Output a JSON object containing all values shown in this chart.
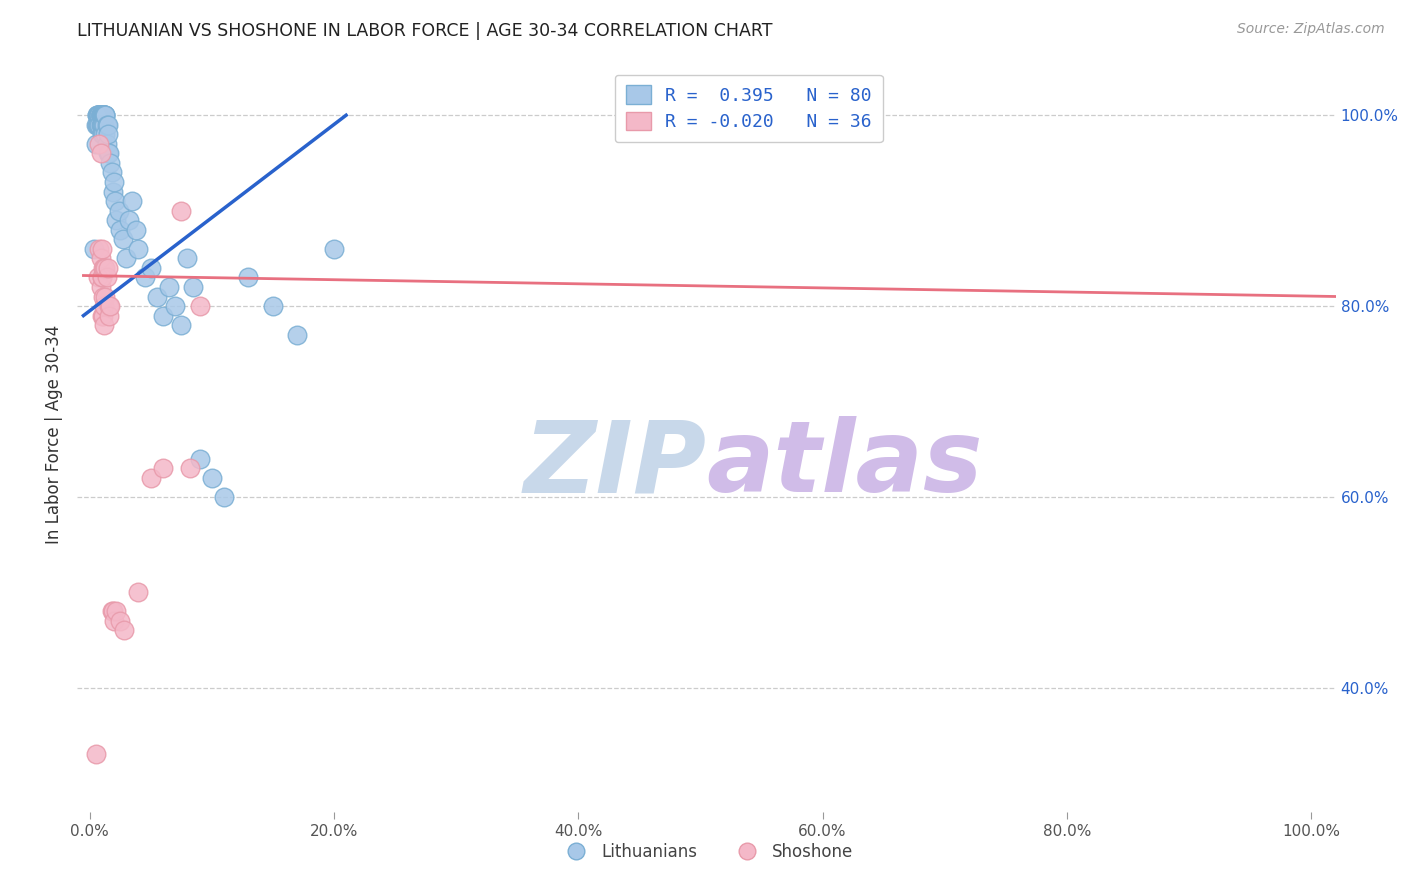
{
  "title": "LITHUANIAN VS SHOSHONE IN LABOR FORCE | AGE 30-34 CORRELATION CHART",
  "source": "Source: ZipAtlas.com",
  "ylabel": "In Labor Force | Age 30-34",
  "x_tick_labels": [
    "0.0%",
    "20.0%",
    "40.0%",
    "60.0%",
    "80.0%",
    "100.0%"
  ],
  "x_tick_vals": [
    0.0,
    0.2,
    0.4,
    0.6,
    0.8,
    1.0
  ],
  "y_tick_labels_right": [
    "100.0%",
    "80.0%",
    "60.0%",
    "40.0%"
  ],
  "y_tick_vals_right": [
    1.0,
    0.8,
    0.6,
    0.4
  ],
  "xlim": [
    -0.01,
    1.02
  ],
  "ylim": [
    0.27,
    1.06
  ],
  "legend_label_blue": "Lithuanians",
  "legend_label_pink": "Shoshone",
  "r_blue": 0.395,
  "n_blue": 80,
  "r_pink": -0.02,
  "n_pink": 36,
  "blue_color": "#a8c8e8",
  "pink_color": "#f4b8c8",
  "blue_edge_color": "#7bafd4",
  "pink_edge_color": "#e89aaa",
  "blue_line_color": "#2962cc",
  "pink_line_color": "#e87080",
  "title_color": "#222222",
  "source_color": "#999999",
  "axis_label_color": "#333333",
  "tick_color_right": "#2962cc",
  "tick_color_bottom": "#555555",
  "grid_color": "#cccccc",
  "watermark_zip_color": "#c8d8ea",
  "watermark_atlas_color": "#d0bce8",
  "blue_scatter_x": [
    0.004,
    0.005,
    0.005,
    0.006,
    0.006,
    0.006,
    0.007,
    0.007,
    0.007,
    0.007,
    0.008,
    0.008,
    0.008,
    0.008,
    0.009,
    0.009,
    0.009,
    0.009,
    0.009,
    0.009,
    0.01,
    0.01,
    0.01,
    0.01,
    0.01,
    0.01,
    0.01,
    0.01,
    0.01,
    0.011,
    0.011,
    0.011,
    0.011,
    0.011,
    0.011,
    0.012,
    0.012,
    0.012,
    0.012,
    0.012,
    0.013,
    0.013,
    0.013,
    0.013,
    0.014,
    0.014,
    0.015,
    0.015,
    0.015,
    0.016,
    0.017,
    0.018,
    0.019,
    0.02,
    0.021,
    0.022,
    0.024,
    0.025,
    0.027,
    0.03,
    0.032,
    0.035,
    0.038,
    0.04,
    0.045,
    0.05,
    0.055,
    0.06,
    0.065,
    0.07,
    0.075,
    0.08,
    0.085,
    0.09,
    0.1,
    0.11,
    0.13,
    0.15,
    0.17,
    0.2
  ],
  "blue_scatter_y": [
    0.86,
    0.99,
    0.97,
    1.0,
    1.0,
    0.99,
    1.0,
    1.0,
    1.0,
    0.99,
    1.0,
    1.0,
    1.0,
    0.99,
    1.0,
    1.0,
    1.0,
    1.0,
    1.0,
    0.99,
    1.0,
    1.0,
    1.0,
    1.0,
    1.0,
    1.0,
    0.99,
    0.99,
    0.98,
    1.0,
    1.0,
    1.0,
    1.0,
    0.99,
    0.98,
    1.0,
    1.0,
    1.0,
    1.0,
    0.99,
    1.0,
    1.0,
    1.0,
    0.98,
    0.99,
    0.97,
    0.99,
    0.98,
    0.96,
    0.96,
    0.95,
    0.94,
    0.92,
    0.93,
    0.91,
    0.89,
    0.9,
    0.88,
    0.87,
    0.85,
    0.89,
    0.91,
    0.88,
    0.86,
    0.83,
    0.84,
    0.81,
    0.79,
    0.82,
    0.8,
    0.78,
    0.85,
    0.82,
    0.64,
    0.62,
    0.6,
    0.83,
    0.8,
    0.77,
    0.86
  ],
  "pink_scatter_x": [
    0.005,
    0.007,
    0.008,
    0.008,
    0.009,
    0.009,
    0.009,
    0.01,
    0.01,
    0.01,
    0.01,
    0.011,
    0.011,
    0.011,
    0.012,
    0.012,
    0.012,
    0.013,
    0.013,
    0.014,
    0.015,
    0.016,
    0.016,
    0.017,
    0.018,
    0.019,
    0.02,
    0.022,
    0.025,
    0.028,
    0.04,
    0.05,
    0.06,
    0.075,
    0.082,
    0.09
  ],
  "pink_scatter_y": [
    0.33,
    0.83,
    0.86,
    0.97,
    0.96,
    0.85,
    0.82,
    0.86,
    0.83,
    0.83,
    0.79,
    0.84,
    0.81,
    0.79,
    0.84,
    0.8,
    0.78,
    0.84,
    0.81,
    0.83,
    0.84,
    0.8,
    0.79,
    0.8,
    0.48,
    0.48,
    0.47,
    0.48,
    0.47,
    0.46,
    0.5,
    0.62,
    0.63,
    0.9,
    0.63,
    0.8
  ],
  "blue_trendline_x": [
    -0.005,
    0.21
  ],
  "blue_trendline_y": [
    0.79,
    1.0
  ],
  "pink_trendline_x": [
    -0.005,
    1.02
  ],
  "pink_trendline_y": [
    0.832,
    0.81
  ]
}
